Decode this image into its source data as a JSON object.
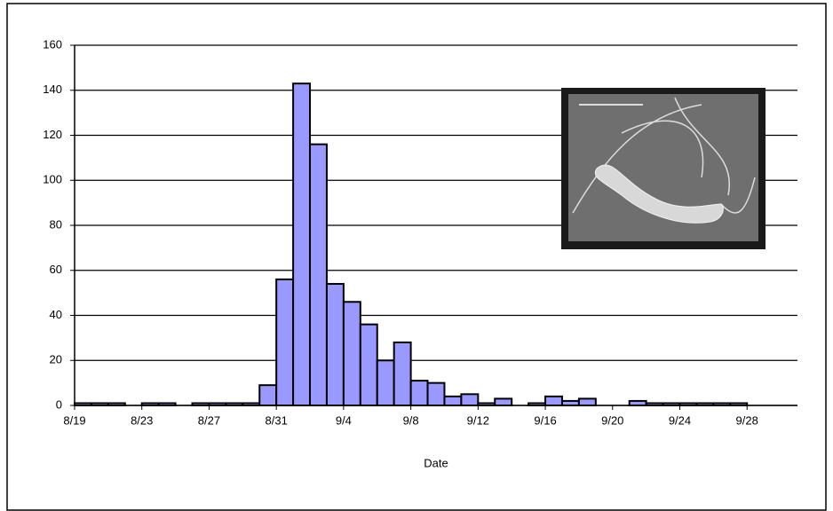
{
  "chart_data": {
    "type": "bar",
    "x_label": "Date",
    "categories": [
      "8/19",
      null,
      null,
      null,
      "8/23",
      null,
      null,
      null,
      "8/27",
      null,
      null,
      null,
      "8/31",
      null,
      null,
      null,
      "9/4",
      null,
      null,
      null,
      "9/8",
      null,
      null,
      null,
      "9/12",
      null,
      null,
      null,
      "9/16",
      null,
      null,
      null,
      "9/20",
      null,
      null,
      null,
      "9/24",
      null,
      null,
      null,
      "9/28",
      null,
      null
    ],
    "values": [
      1,
      1,
      1,
      0,
      1,
      1,
      0,
      1,
      1,
      1,
      1,
      9,
      56,
      143,
      116,
      54,
      46,
      36,
      20,
      28,
      11,
      10,
      4,
      5,
      1,
      3,
      0,
      1,
      4,
      2,
      3,
      0,
      0,
      2,
      1,
      1,
      1,
      1,
      1,
      1,
      0,
      0,
      0
    ],
    "color": "#9999ff",
    "ylim": [
      0,
      160
    ],
    "yticks": [
      0,
      20,
      40,
      60,
      80,
      100,
      120,
      140,
      160
    ],
    "grid": true
  }
}
